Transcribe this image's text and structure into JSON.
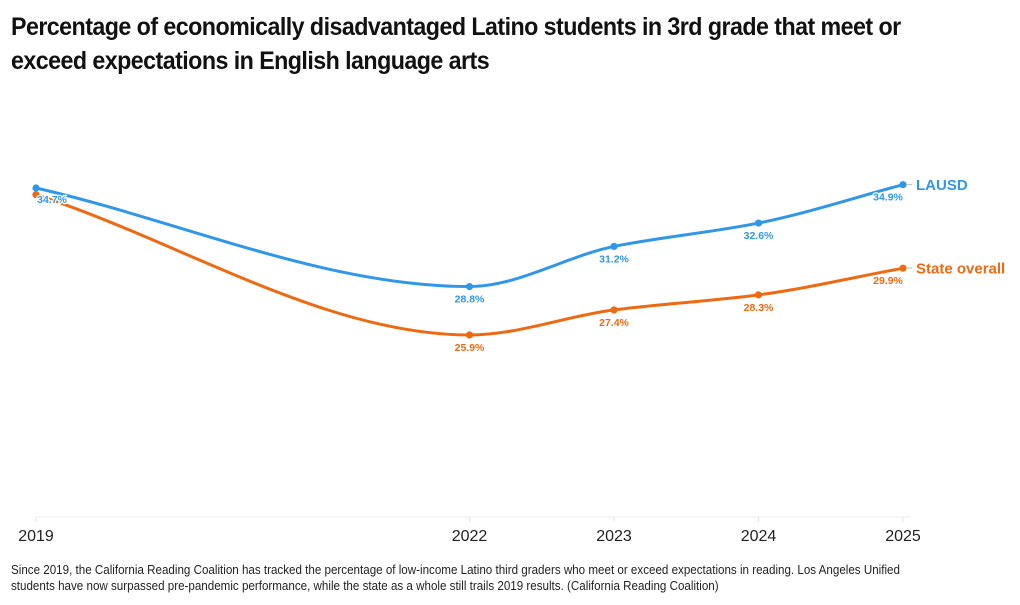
{
  "header": {
    "title": "Percentage of economically disadvantaged Latino students in 3rd grade that meet or exceed expectations in English language arts"
  },
  "footer": {
    "note": "Since 2019, the California Reading Coalition has tracked the percentage of low-income Latino third graders who meet or exceed expectations in reading. Los Angeles Unified students have now surpassed pre-pandemic performance, while the state as a whole still trails 2019 results. (California Reading Coalition)"
  },
  "chart_data": {
    "type": "line",
    "title": "Percentage of economically disadvantaged Latino students in 3rd grade that meet or exceed expectations in English language arts",
    "xlabel": "",
    "ylabel": "",
    "x": [
      2019,
      2022,
      2023,
      2024,
      2025
    ],
    "tick_labels": [
      "2019",
      "2022",
      "2023",
      "2024",
      "2025"
    ],
    "xlim": [
      2019,
      2025
    ],
    "ylim": [
      15,
      40
    ],
    "grid": false,
    "legend": "inline-right",
    "series": [
      {
        "name": "LAUSD",
        "color": "#3097e8",
        "values": [
          34.7,
          28.8,
          31.2,
          32.6,
          34.9
        ],
        "labels": [
          "34.7%",
          "28.8%",
          "31.2%",
          "32.6%",
          "34.9%"
        ]
      },
      {
        "name": "State overall",
        "color": "#ee6a12",
        "values": [
          34.3,
          25.9,
          27.4,
          28.3,
          29.9
        ],
        "labels": [
          "",
          "25.9%",
          "27.4%",
          "28.3%",
          "29.9%"
        ]
      }
    ]
  }
}
